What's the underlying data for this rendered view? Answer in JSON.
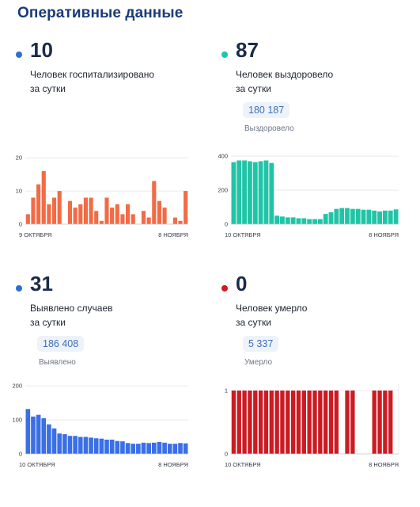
{
  "page_title": "Оперативные данные",
  "panels": [
    {
      "value": "10",
      "caption_lines": [
        "Человек госпитализировано",
        "за сутки"
      ],
      "dot_color": "#2c6fd6",
      "bar_color": "#f26b45"
    },
    {
      "value": "87",
      "caption_lines": [
        "Человек выздоровело",
        "за сутки"
      ],
      "total": "180 187",
      "total_label": "Выздоровело",
      "dot_color": "#21c4a7",
      "bar_color": "#21c4a7"
    },
    {
      "value": "31",
      "caption_lines": [
        "Выявлено случаев",
        "за сутки"
      ],
      "total": "186 408",
      "total_label": "Выявлено",
      "dot_color": "#2c6fd6",
      "bar_color": "#3a6fe6"
    },
    {
      "value": "0",
      "caption_lines": [
        "Человек умерло",
        "за сутки"
      ],
      "total": "5 337",
      "total_label": "Умерло",
      "dot_color": "#cc1b23",
      "bar_color": "#cc1b23"
    }
  ],
  "chart_data": [
    {
      "type": "bar",
      "series_of": "hospitalized",
      "x_start_label": "9 ОКТЯБРЯ",
      "x_end_label": "8 НОЯБРЯ",
      "yticks": [
        0,
        10,
        20
      ],
      "ylim": [
        0,
        21
      ],
      "values": [
        3,
        8,
        12,
        16,
        6,
        8,
        10,
        null,
        7,
        5,
        6,
        8,
        8,
        4,
        1,
        8,
        5,
        6,
        3,
        6,
        3,
        null,
        4,
        2,
        13,
        7,
        5,
        null,
        2,
        1,
        10
      ]
    },
    {
      "type": "bar",
      "series_of": "recovered",
      "x_start_label": "10 ОКТЯБРЯ",
      "x_end_label": "8 НОЯБРЯ",
      "yticks": [
        0,
        200,
        400
      ],
      "ylim": [
        0,
        410
      ],
      "values": [
        365,
        375,
        375,
        370,
        365,
        370,
        375,
        360,
        50,
        45,
        40,
        40,
        35,
        35,
        30,
        30,
        30,
        60,
        70,
        90,
        95,
        95,
        90,
        90,
        85,
        85,
        80,
        75,
        80,
        80,
        87
      ]
    },
    {
      "type": "bar",
      "series_of": "cases",
      "x_start_label": "10 ОКТЯБРЯ",
      "x_end_label": "8 НОЯБРЯ",
      "yticks": [
        0,
        100,
        200
      ],
      "ylim": [
        0,
        205
      ],
      "values": [
        132,
        110,
        115,
        105,
        87,
        75,
        60,
        58,
        53,
        53,
        50,
        50,
        48,
        46,
        45,
        42,
        42,
        38,
        37,
        32,
        30,
        30,
        33,
        32,
        33,
        35,
        33,
        30,
        30,
        32,
        31
      ]
    },
    {
      "type": "bar",
      "series_of": "deaths",
      "x_start_label": "10 ОКТЯБРЯ",
      "x_end_label": "8 НОЯБРЯ",
      "yticks": [
        0,
        1
      ],
      "ylim": [
        0,
        1.05
      ],
      "values": [
        1,
        1,
        1,
        1,
        1,
        1,
        1,
        1,
        1,
        1,
        1,
        1,
        1,
        1,
        1,
        1,
        1,
        1,
        1,
        1,
        0,
        1,
        1,
        0,
        0,
        0,
        1,
        1,
        1,
        1,
        0
      ]
    }
  ]
}
